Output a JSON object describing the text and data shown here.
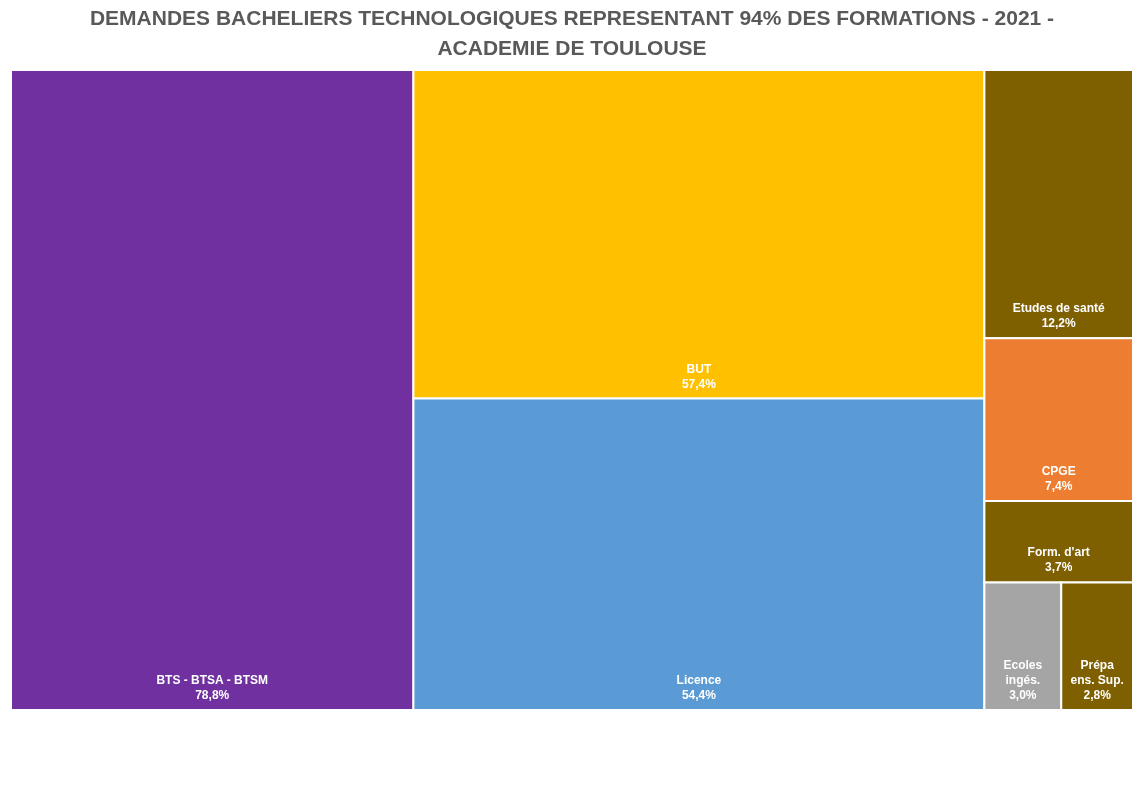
{
  "chart_data": {
    "type": "other",
    "title": "DEMANDES BACHELIERS TECHNOLOGIQUES REPRESENTANT 94% DES FORMATIONS - 2021 - ACADEMIE DE TOULOUSE",
    "categories": [
      "BTS - BTSA - BTSM",
      "BUT",
      "Licence",
      "Etudes de santé",
      "CPGE",
      "Form. d'art",
      "Ecoles ingés.",
      "Prépa ens. Sup."
    ],
    "values": [
      78.8,
      57.4,
      54.4,
      12.2,
      7.4,
      3.7,
      3.0,
      2.8
    ],
    "value_labels": [
      "78,8%",
      "57,4%",
      "54,4%",
      "12,2%",
      "7,4%",
      "3,7%",
      "3,0%",
      "2,8%"
    ],
    "colors": [
      "#7030a0",
      "#ffc000",
      "#5b9bd5",
      "#7f6000",
      "#ed7d31",
      "#7f6000",
      "#a5a5a5",
      "#7f6000"
    ]
  }
}
